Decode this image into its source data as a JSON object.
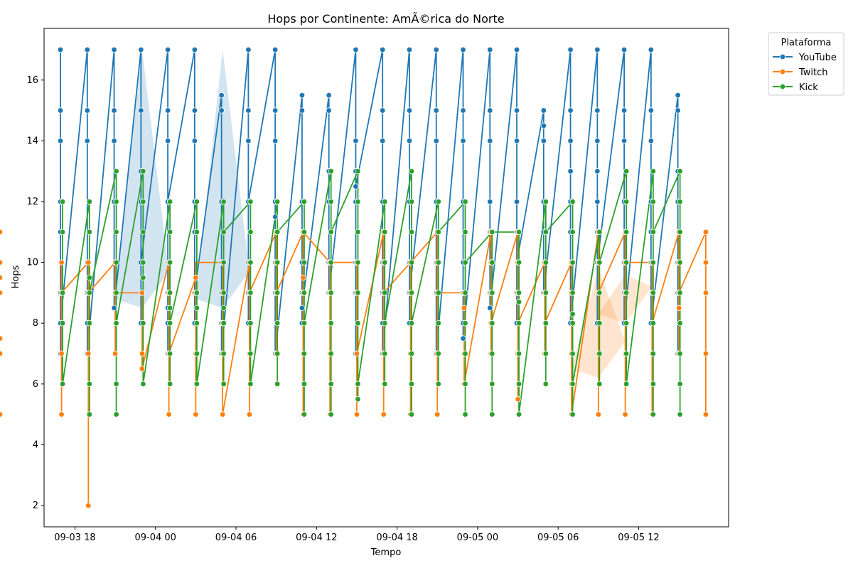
{
  "chart_data": {
    "type": "line",
    "title": "Hops por Continente: AmÃ©rica do Norte",
    "xlabel": "Tempo",
    "ylabel": "Hops",
    "x_tick_labels": [
      "09-03 18",
      "09-04 00",
      "09-04 06",
      "09-04 12",
      "09-04 18",
      "09-05 00",
      "09-05 06",
      "09-05 12"
    ],
    "y_tick_labels": [
      "2",
      "4",
      "6",
      "8",
      "10",
      "12",
      "14",
      "16"
    ],
    "ylim": [
      1.3,
      17.7
    ],
    "xlim_hours": [
      -2.3,
      48.7
    ],
    "x_axis_origin": "09-03 18",
    "grid": false,
    "legend": {
      "title": "Plataforma",
      "placement": "outside-right"
    },
    "times": [
      -1,
      1,
      3,
      5,
      7,
      9,
      11,
      13,
      15,
      17,
      19,
      21,
      23,
      25,
      27,
      29,
      31,
      33,
      35,
      37,
      39,
      41,
      43,
      45,
      47
    ],
    "series": [
      {
        "name": "YouTube",
        "color": "#1f77b4",
        "points": [
          [
            [
              17,
              15,
              14,
              12,
              11,
              9,
              8,
              7
            ],
            [
              8
            ]
          ],
          [
            [
              17,
              15,
              14,
              10,
              9,
              8,
              7
            ],
            [
              7
            ]
          ],
          [
            [
              17,
              15,
              14,
              12,
              8.5
            ],
            [
              8.5
            ]
          ],
          [
            [
              17,
              15,
              13,
              12,
              10,
              9,
              8
            ],
            [
              10
            ]
          ],
          [
            [
              17,
              15,
              14,
              12,
              9,
              8.5,
              8,
              7
            ],
            [
              12
            ]
          ],
          [
            [
              17,
              15,
              14,
              12,
              11,
              9,
              8
            ],
            [
              9
            ]
          ],
          [
            [
              15.5,
              15,
              12,
              10,
              9,
              8,
              7
            ],
            [
              7
            ]
          ],
          [
            [
              17,
              15,
              14,
              12,
              10,
              9,
              8
            ],
            [
              12
            ]
          ],
          [
            [
              17,
              15,
              14,
              12,
              11.5,
              10,
              9,
              7
            ],
            [
              7
            ]
          ],
          [
            [
              15.5,
              15,
              12,
              10,
              9,
              8.5,
              8
            ],
            [
              8.5
            ]
          ],
          [
            [
              15.5,
              15,
              13,
              12,
              10,
              9
            ],
            [
              9
            ]
          ],
          [
            [
              17,
              14,
              13,
              12.5,
              12,
              10,
              9,
              7
            ],
            [
              12.5
            ]
          ],
          [
            [
              17,
              15,
              14,
              12,
              10,
              9,
              8,
              7
            ],
            [
              7
            ]
          ],
          [
            [
              17,
              15,
              14,
              12,
              10,
              9,
              8
            ],
            [
              9
            ]
          ],
          [
            [
              17,
              15,
              14,
              12,
              10,
              9,
              7
            ],
            [
              7
            ]
          ],
          [
            [
              17,
              15,
              14,
              12,
              10,
              9,
              8,
              7.5
            ],
            [
              7.5
            ]
          ],
          [
            [
              17,
              15,
              14,
              12,
              11,
              9,
              8.5
            ],
            [
              8.5
            ]
          ],
          [
            [
              17,
              15,
              14,
              12,
              11,
              9,
              8
            ],
            [
              10
            ]
          ],
          [
            [
              15,
              14.5,
              14,
              12,
              11,
              9
            ],
            [
              9
            ]
          ],
          [
            [
              17,
              15,
              14,
              13,
              12,
              11,
              8
            ],
            [
              8
            ]
          ],
          [
            [
              17,
              15,
              14,
              13,
              12,
              11,
              10,
              8
            ],
            [
              10
            ]
          ],
          [
            [
              17,
              15,
              14,
              12,
              10,
              9,
              8
            ],
            [
              8
            ]
          ],
          [
            [
              17,
              15,
              14,
              12,
              11,
              10,
              8
            ],
            [
              8
            ]
          ],
          [
            [
              15.5,
              15,
              13,
              12,
              10,
              9,
              7
            ],
            [
              12
            ]
          ]
        ],
        "bands": [
          [
            5,
            8.5,
            17
          ],
          [
            11,
            8.5,
            17
          ]
        ]
      },
      {
        "name": "Twitch",
        "color": "#ff7f0e",
        "points": [
          [
            [
              10,
              9,
              7,
              5
            ],
            [
              9
            ]
          ],
          [
            [
              10,
              9,
              7,
              2
            ],
            [
              9
            ]
          ],
          [
            [
              10,
              9,
              7
            ],
            [
              9
            ]
          ],
          [
            [
              9,
              7,
              6.5
            ],
            [
              6.5
            ]
          ],
          [
            [
              10,
              9,
              7,
              5
            ],
            [
              7
            ]
          ],
          [
            [
              9.5,
              9,
              7,
              5
            ],
            [
              10
            ]
          ],
          [
            [
              10,
              9,
              8,
              7,
              5
            ],
            [
              5
            ]
          ],
          [
            [
              10,
              9,
              7,
              5
            ],
            [
              9
            ]
          ],
          [
            [
              11,
              10,
              9,
              7
            ],
            [
              9
            ]
          ],
          [
            [
              11,
              9.5,
              9,
              7,
              5
            ],
            [
              11
            ]
          ],
          [
            [
              10,
              9,
              7,
              5
            ],
            [
              10
            ]
          ],
          [
            [
              10,
              9,
              7,
              5
            ],
            [
              7
            ]
          ],
          [
            [
              11,
              10,
              9,
              7,
              5
            ],
            [
              9
            ]
          ],
          [
            [
              10,
              9,
              7,
              5
            ],
            [
              10
            ]
          ],
          [
            [
              11,
              10,
              9,
              7,
              5
            ],
            [
              9
            ]
          ],
          [
            [
              9,
              8.5,
              7,
              6
            ],
            [
              6
            ]
          ],
          [
            [
              11,
              10,
              9,
              8,
              7
            ],
            [
              8
            ]
          ],
          [
            [
              11,
              10,
              9,
              7,
              5.5
            ],
            [
              8
            ]
          ],
          [
            [
              10,
              9,
              7
            ],
            [
              8
            ]
          ],
          [
            [
              10,
              9,
              7,
              6,
              5
            ],
            [
              5
            ]
          ],
          [
            [
              11,
              10,
              9,
              7,
              5
            ],
            [
              9
            ]
          ],
          [
            [
              11,
              10,
              9,
              7,
              5
            ],
            [
              10
            ]
          ],
          [
            [
              10,
              9,
              7,
              5
            ],
            [
              8
            ]
          ],
          [
            [
              11,
              10,
              9,
              8.5,
              7
            ],
            [
              9
            ]
          ],
          [
            [
              11,
              10,
              9,
              7,
              5
            ],
            [
              9
            ]
          ],
          [
            [
              10,
              9,
              7,
              5
            ],
            [
              7
            ]
          ],
          [
            [
              11,
              10,
              9.5,
              9,
              7
            ],
            [
              8
            ]
          ],
          [
            [
              10,
              9,
              7,
              5
            ],
            [
              10
            ]
          ],
          [
            [
              11,
              10,
              9,
              7.5,
              7
            ],
            [
              7
            ]
          ]
        ],
        "bands": [
          [
            39,
            6.2,
            9.8
          ],
          [
            41,
            8,
            9.6
          ]
        ]
      },
      {
        "name": "Kick",
        "color": "#2ca02c",
        "points": [
          [
            [
              12,
              11,
              9,
              8,
              6
            ],
            [
              6
            ]
          ],
          [
            [
              12,
              11,
              9.5,
              9,
              8,
              6,
              5
            ],
            [
              9
            ]
          ],
          [
            [
              13,
              12,
              11,
              10,
              9,
              8,
              6,
              5
            ],
            [
              8
            ]
          ],
          [
            [
              13,
              12,
              11,
              10,
              9.5,
              8,
              6
            ],
            [
              6
            ]
          ],
          [
            [
              12,
              11,
              10,
              9,
              8.5,
              8,
              7,
              6
            ],
            [
              8
            ]
          ],
          [
            [
              12,
              11,
              9,
              8.5,
              8,
              7,
              6
            ],
            [
              6
            ]
          ],
          [
            [
              12,
              11,
              10,
              9,
              8.5,
              8,
              7,
              6
            ],
            [
              11
            ]
          ],
          [
            [
              12,
              11,
              10,
              9,
              8,
              7,
              6
            ],
            [
              6
            ]
          ],
          [
            [
              12,
              11,
              10,
              9,
              8,
              7,
              6
            ],
            [
              11
            ]
          ],
          [
            [
              12,
              11,
              10,
              9,
              8,
              7,
              6,
              5
            ],
            [
              8
            ]
          ],
          [
            [
              13,
              12,
              11,
              10,
              9,
              8,
              7,
              6,
              5
            ],
            [
              11
            ]
          ],
          [
            [
              13,
              12,
              11,
              10,
              9,
              8,
              6,
              5.5
            ],
            [
              6
            ]
          ],
          [
            [
              12,
              11,
              10,
              9,
              8,
              7,
              6
            ],
            [
              8
            ]
          ],
          [
            [
              13,
              12,
              11,
              10,
              9,
              8,
              7,
              6,
              5
            ],
            [
              8
            ]
          ],
          [
            [
              12,
              11,
              10,
              9,
              8,
              7,
              6
            ],
            [
              11
            ]
          ],
          [
            [
              12,
              11,
              10,
              9,
              8,
              7,
              6,
              5
            ],
            [
              10
            ]
          ],
          [
            [
              11,
              10,
              9,
              8,
              7,
              6,
              5
            ],
            [
              11
            ]
          ],
          [
            [
              11,
              10,
              9,
              8.7,
              8,
              7,
              6,
              5
            ],
            [
              5
            ]
          ],
          [
            [
              12,
              11,
              10,
              9,
              8,
              7,
              6
            ],
            [
              11
            ]
          ],
          [
            [
              12,
              11,
              10,
              9,
              8.3,
              8,
              7,
              6,
              5
            ],
            [
              6
            ]
          ],
          [
            [
              11,
              10,
              9,
              8,
              7,
              6
            ],
            [
              10
            ]
          ],
          [
            [
              13,
              12,
              11,
              10,
              9,
              8,
              7,
              6
            ],
            [
              6
            ]
          ],
          [
            [
              13,
              12,
              11,
              10,
              9,
              8,
              7,
              6,
              5
            ],
            [
              11
            ]
          ],
          [
            [
              13,
              12,
              11,
              10,
              9,
              8,
              7,
              6,
              5
            ],
            [
              13
            ]
          ]
        ],
        "bands": []
      }
    ]
  }
}
